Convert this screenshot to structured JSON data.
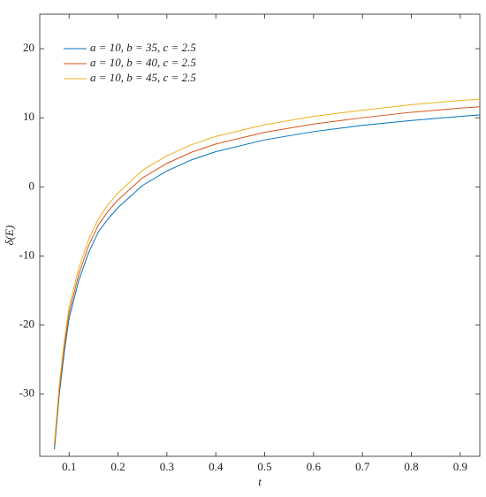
{
  "chart_data": {
    "type": "line",
    "xlabel": "t",
    "ylabel": "δ(E)",
    "x": [
      0.07,
      0.08,
      0.09,
      0.1,
      0.12,
      0.14,
      0.16,
      0.18,
      0.2,
      0.25,
      0.3,
      0.35,
      0.4,
      0.5,
      0.6,
      0.7,
      0.8,
      0.9,
      0.94
    ],
    "series": [
      {
        "name": "a = 10, b = 35, c = 2.5",
        "color": "#0072bd",
        "values": [
          -38,
          -30,
          -24,
          -19,
          -13.5,
          -9.5,
          -6.5,
          -4.6,
          -3,
          0.2,
          2.3,
          3.9,
          5.1,
          6.8,
          8,
          8.9,
          9.6,
          10.2,
          10.4
        ]
      },
      {
        "name": "a = 10, b = 40, c = 2.5",
        "color": "#d95319",
        "values": [
          -37.5,
          -29.3,
          -23.2,
          -18.2,
          -12.6,
          -8.5,
          -5.5,
          -3.5,
          -1.9,
          1.3,
          3.4,
          5,
          6.2,
          7.9,
          9.1,
          10,
          10.8,
          11.4,
          11.6
        ]
      },
      {
        "name": "a = 10, b = 45, c = 2.5",
        "color": "#edb120",
        "values": [
          -37,
          -28.6,
          -22.4,
          -17.4,
          -11.7,
          -7.6,
          -4.6,
          -2.5,
          -0.9,
          2.4,
          4.5,
          6.1,
          7.3,
          9,
          10.2,
          11.1,
          11.9,
          12.5,
          12.7
        ]
      }
    ],
    "xlim": [
      0.04,
      0.94
    ],
    "ylim": [
      -39,
      25
    ],
    "xticks": [
      0.1,
      0.2,
      0.3,
      0.4,
      0.5,
      0.6,
      0.7,
      0.8,
      0.9
    ],
    "yticks": [
      -30,
      -20,
      -10,
      0,
      10,
      20
    ],
    "legend": "upper-left"
  }
}
